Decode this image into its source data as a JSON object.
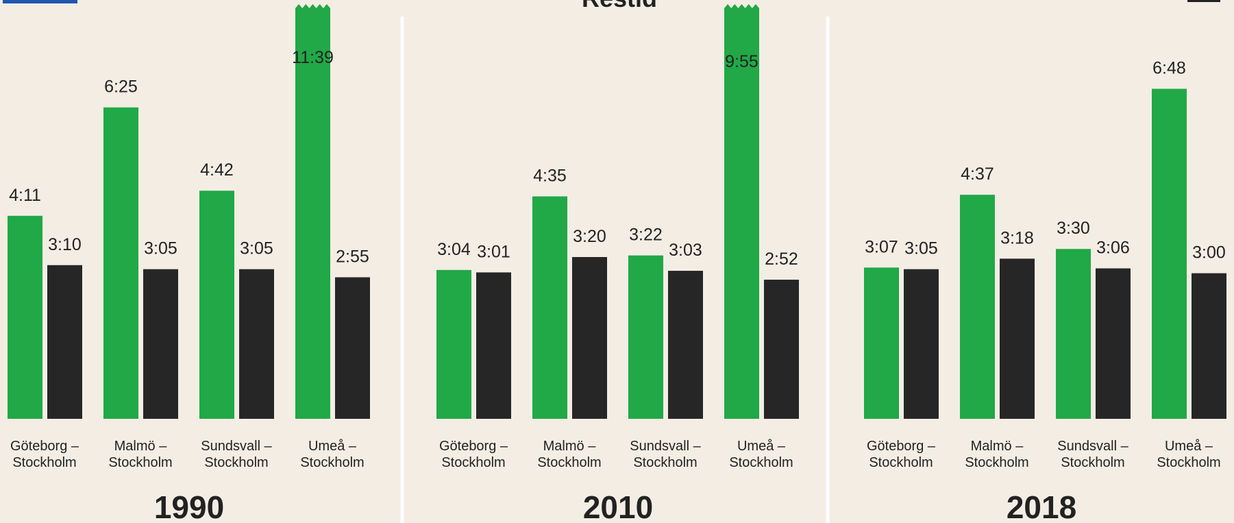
{
  "title": "Restid",
  "chart_data": [
    {
      "type": "bar",
      "title": "1990",
      "categories": [
        "Göteborg –\nStockholm",
        "Malmö –\nStockholm",
        "Sundsvall –\nStockholm",
        "Umeå –\nStockholm"
      ],
      "series": [
        {
          "color": "#21a847",
          "values": [
            251,
            385,
            282,
            699
          ],
          "value_labels": [
            "4:11",
            "6:25",
            "4:42",
            "11:39"
          ]
        },
        {
          "color": "#262626",
          "values": [
            190,
            185,
            185,
            175
          ],
          "value_labels": [
            "3:10",
            "3:05",
            "3:05",
            "2:55"
          ]
        }
      ]
    },
    {
      "type": "bar",
      "title": "2010",
      "categories": [
        "Göteborg –\nStockholm",
        "Malmö –\nStockholm",
        "Sundsvall –\nStockholm",
        "Umeå –\nStockholm"
      ],
      "series": [
        {
          "color": "#21a847",
          "values": [
            184,
            275,
            202,
            595
          ],
          "value_labels": [
            "3:04",
            "4:35",
            "3:22",
            "9:55"
          ]
        },
        {
          "color": "#262626",
          "values": [
            181,
            200,
            183,
            172
          ],
          "value_labels": [
            "3:01",
            "3:20",
            "3:03",
            "2:52"
          ]
        }
      ]
    },
    {
      "type": "bar",
      "title": "2018",
      "categories": [
        "Göteborg –\nStockholm",
        "Malmö –\nStockholm",
        "Sundsvall –\nStockholm",
        "Umeå –\nStockholm"
      ],
      "series": [
        {
          "color": "#21a847",
          "values": [
            187,
            277,
            210,
            408
          ],
          "value_labels": [
            "3:07",
            "4:37",
            "3:30",
            "6:48"
          ]
        },
        {
          "color": "#262626",
          "values": [
            185,
            198,
            186,
            180
          ],
          "value_labels": [
            "3:05",
            "3:18",
            "3:06",
            "3:00"
          ]
        }
      ]
    }
  ]
}
